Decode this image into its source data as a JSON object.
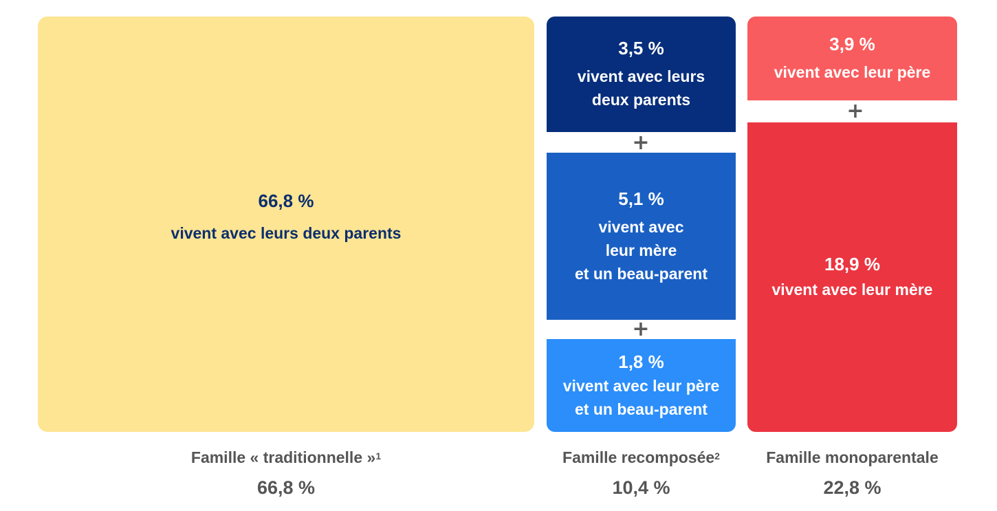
{
  "colors": {
    "traditional": "#FDE593",
    "recomposed_both": "#062E7C",
    "recomposed_mother": "#1A60C4",
    "recomposed_father": "#2B8EFB",
    "mono_father": "#F95C5E",
    "mono_mother": "#EB3541",
    "label_text": "#555555",
    "dark_text": "#0C2E6E"
  },
  "chart_data": {
    "type": "bar",
    "categories": [
      "Famille « traditionnelle »",
      "Famille recomposée",
      "Famille monoparentale"
    ],
    "series": [
      {
        "name": "vivent avec leurs deux parents",
        "values": [
          66.8,
          3.5,
          0
        ]
      },
      {
        "name": "vivent avec leur mère et un beau-parent",
        "values": [
          0,
          5.1,
          0
        ]
      },
      {
        "name": "vivent avec leur père et un beau-parent",
        "values": [
          0,
          1.8,
          0
        ]
      },
      {
        "name": "vivent avec leur père",
        "values": [
          0,
          0,
          3.9
        ]
      },
      {
        "name": "vivent avec leur mère",
        "values": [
          0,
          0,
          18.9
        ]
      }
    ],
    "totals": [
      66.8,
      10.4,
      22.8
    ]
  },
  "blocks": {
    "traditional": {
      "pct": "66,8 %",
      "desc": "vivent avec leurs deux parents"
    },
    "recomposed_both": {
      "pct": "3,5 %",
      "desc": "vivent avec leurs\ndeux parents"
    },
    "recomposed_mother": {
      "pct": "5,1 %",
      "desc": "vivent avec\nleur mère\net un beau-parent"
    },
    "recomposed_father": {
      "pct": "1,8 %",
      "desc": "vivent avec leur père\net un beau-parent"
    },
    "mono_father": {
      "pct": "3,9 %",
      "desc": "vivent avec leur père"
    },
    "mono_mother": {
      "pct": "18,9 %",
      "desc": "vivent avec leur mère"
    }
  },
  "plus_sign": "+",
  "columns": [
    {
      "label": "Famille « traditionnelle »",
      "footnote": "1",
      "total": "66,8 %"
    },
    {
      "label": "Famille recomposée",
      "footnote": "2",
      "total": "10,4 %"
    },
    {
      "label": "Famille monoparentale",
      "footnote": "",
      "total": "22,8 %"
    }
  ]
}
